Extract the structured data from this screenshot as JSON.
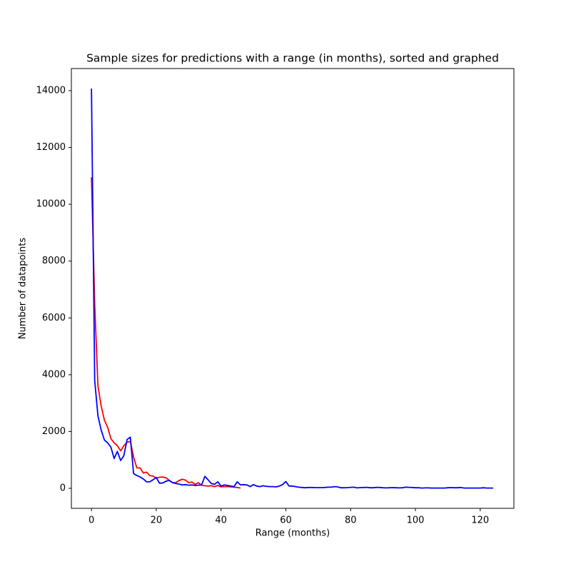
{
  "chart_data": {
    "type": "line",
    "title": "Sample sizes for predictions with a range (in months), sorted and graphed",
    "x_label": "Range (months)",
    "y_label": "Number of datapoints",
    "xlim": [
      -6.2,
      130.4
    ],
    "ylim": [
      -704,
      14778
    ],
    "xticks": [
      0,
      20,
      40,
      60,
      80,
      100,
      120
    ],
    "yticks": [
      0,
      2000,
      4000,
      6000,
      8000,
      10000,
      12000,
      14000
    ],
    "series": [
      {
        "color": "#ff0000",
        "x": [
          0,
          1,
          2,
          3,
          4,
          5,
          6,
          7,
          8,
          9,
          10,
          11,
          12,
          13,
          14,
          15,
          16,
          17,
          18,
          19,
          20,
          21,
          22,
          23,
          24,
          25,
          26,
          27,
          28,
          29,
          30,
          31,
          32,
          33,
          34,
          35,
          36,
          37,
          38,
          39,
          40,
          41,
          42,
          43,
          44,
          45,
          46
        ],
        "values": [
          10950,
          6500,
          3600,
          2900,
          2400,
          2150,
          1750,
          1600,
          1500,
          1320,
          1500,
          1620,
          1650,
          1100,
          720,
          720,
          540,
          570,
          450,
          430,
          360,
          390,
          400,
          370,
          280,
          200,
          200,
          270,
          320,
          290,
          200,
          220,
          140,
          200,
          110,
          90,
          80,
          90,
          60,
          100,
          50,
          60,
          60,
          50,
          40,
          30,
          10
        ]
      },
      {
        "color": "#0000ff",
        "x": [
          0,
          1,
          2,
          3,
          4,
          5,
          6,
          7,
          8,
          9,
          10,
          11,
          12,
          13,
          14,
          15,
          16,
          17,
          18,
          19,
          20,
          21,
          22,
          23,
          24,
          25,
          26,
          27,
          28,
          29,
          30,
          31,
          32,
          33,
          34,
          35,
          36,
          37,
          38,
          39,
          40,
          41,
          42,
          43,
          44,
          45,
          46,
          47,
          48,
          49,
          50,
          51,
          52,
          53,
          54,
          55,
          56,
          57,
          58,
          59,
          60,
          61,
          62,
          63,
          64,
          65,
          66,
          67,
          68,
          69,
          70,
          71,
          72,
          73,
          74,
          75,
          76,
          77,
          78,
          79,
          80,
          81,
          82,
          83,
          84,
          85,
          86,
          87,
          88,
          89,
          90,
          91,
          92,
          93,
          94,
          95,
          96,
          97,
          98,
          99,
          100,
          101,
          102,
          103,
          104,
          105,
          106,
          107,
          108,
          109,
          110,
          111,
          112,
          113,
          114,
          115,
          116,
          117,
          118,
          119,
          120,
          121,
          122,
          123,
          124
        ],
        "values": [
          14070,
          3800,
          2550,
          2050,
          1700,
          1600,
          1450,
          1050,
          1300,
          980,
          1150,
          1720,
          1800,
          520,
          450,
          400,
          330,
          230,
          230,
          300,
          380,
          180,
          190,
          250,
          280,
          200,
          170,
          150,
          120,
          130,
          110,
          120,
          100,
          110,
          120,
          420,
          300,
          170,
          140,
          230,
          80,
          120,
          100,
          80,
          60,
          230,
          120,
          130,
          120,
          60,
          130,
          80,
          60,
          90,
          70,
          60,
          60,
          50,
          80,
          130,
          240,
          80,
          80,
          60,
          40,
          30,
          20,
          30,
          30,
          25,
          25,
          25,
          30,
          40,
          40,
          60,
          50,
          20,
          20,
          25,
          35,
          40,
          15,
          25,
          30,
          35,
          20,
          20,
          35,
          30,
          20,
          15,
          20,
          25,
          20,
          15,
          20,
          40,
          35,
          30,
          20,
          20,
          10,
          15,
          15,
          10,
          10,
          10,
          10,
          10,
          20,
          25,
          20,
          20,
          30,
          10,
          10,
          10,
          10,
          10,
          10,
          20,
          10,
          10,
          10
        ]
      }
    ]
  }
}
